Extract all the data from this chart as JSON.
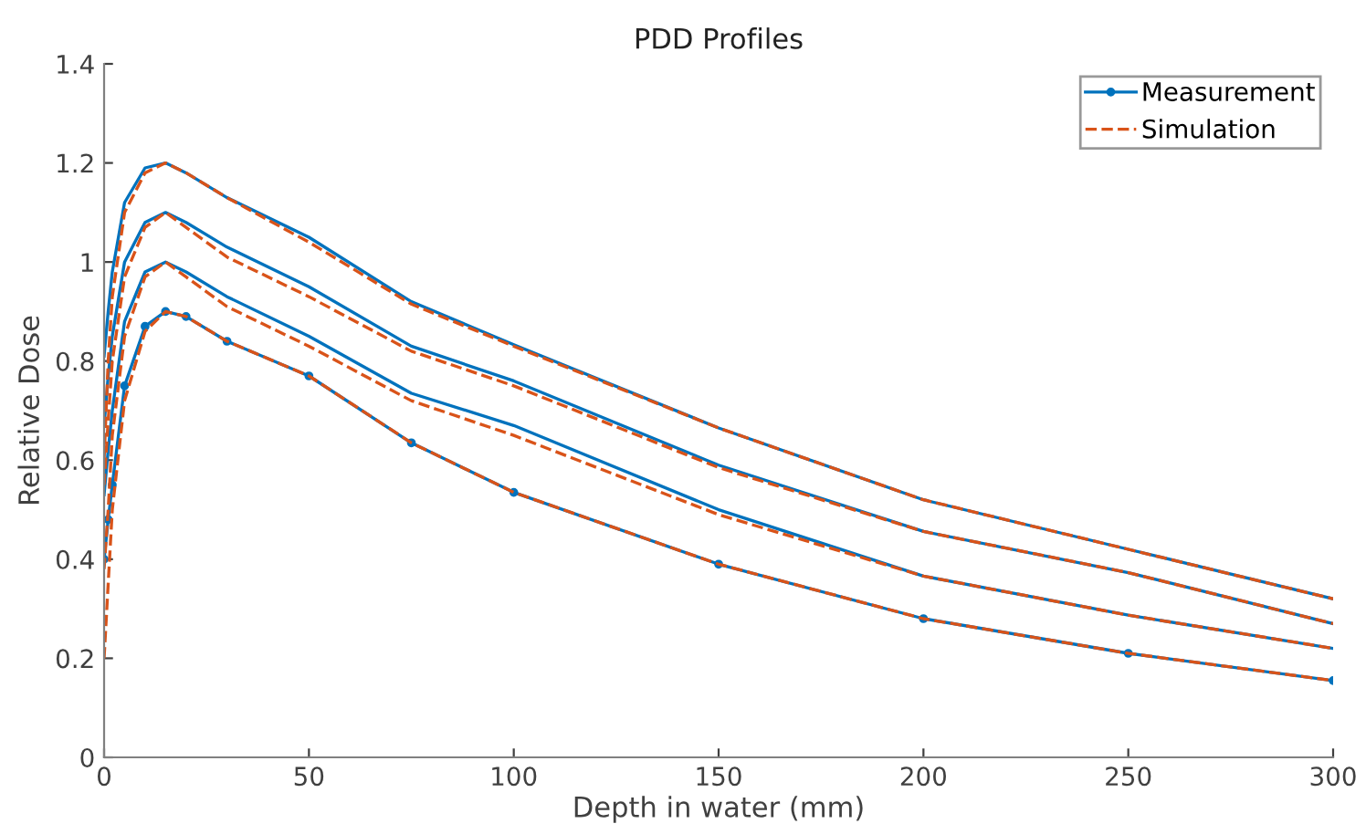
{
  "chart_data": {
    "type": "line",
    "title": "PDD Profiles",
    "xlabel": "Depth in water (mm)",
    "ylabel": "Relative Dose",
    "x": [
      0,
      1,
      2,
      5,
      10,
      15,
      20,
      30,
      50,
      75,
      100,
      150,
      200,
      250,
      300
    ],
    "xlim": [
      0,
      300
    ],
    "xticks": [
      0,
      50,
      100,
      150,
      200,
      250,
      300
    ],
    "ylim": [
      0,
      1.4
    ],
    "yticks": [
      0,
      0.2,
      0.4,
      0.6,
      0.8,
      1,
      1.2,
      1.4
    ],
    "grid": false,
    "legend": "top right",
    "series": [
      {
        "name": "Measurement",
        "color": "#0072bd",
        "line_style": "solid",
        "marker": "circle",
        "values": [
          0.4,
          0.48,
          0.55,
          0.75,
          0.87,
          0.9,
          0.89,
          0.84,
          0.77,
          0.635,
          0.535,
          0.39,
          0.28,
          0.21,
          0.155
        ]
      },
      {
        "name": "Simulation",
        "color": "#d95319",
        "line_style": "dashed",
        "marker": "none",
        "values": [
          0.2,
          0.35,
          0.5,
          0.72,
          0.86,
          0.9,
          0.89,
          0.84,
          0.77,
          0.635,
          0.535,
          0.39,
          0.28,
          0.21,
          0.155
        ]
      },
      {
        "color": "#0072bd",
        "line_style": "solid",
        "marker": "none",
        "values": [
          0.53,
          0.62,
          0.7,
          0.88,
          0.98,
          1.0,
          0.98,
          0.93,
          0.85,
          0.735,
          0.67,
          0.5,
          0.366,
          0.287,
          0.22
        ]
      },
      {
        "color": "#d95319",
        "line_style": "dashed",
        "marker": "none",
        "values": [
          0.38,
          0.5,
          0.65,
          0.85,
          0.97,
          1.0,
          0.97,
          0.91,
          0.83,
          0.72,
          0.65,
          0.49,
          0.366,
          0.287,
          0.22
        ]
      },
      {
        "color": "#0072bd",
        "line_style": "solid",
        "marker": "none",
        "values": [
          0.67,
          0.77,
          0.85,
          1.0,
          1.08,
          1.1,
          1.08,
          1.03,
          0.95,
          0.83,
          0.76,
          0.59,
          0.456,
          0.373,
          0.27
        ]
      },
      {
        "color": "#d95319",
        "line_style": "dashed",
        "marker": "none",
        "values": [
          0.55,
          0.68,
          0.8,
          0.97,
          1.07,
          1.1,
          1.07,
          1.01,
          0.93,
          0.82,
          0.75,
          0.585,
          0.456,
          0.373,
          0.27
        ]
      },
      {
        "color": "#0072bd",
        "line_style": "solid",
        "marker": "none",
        "values": [
          0.81,
          0.9,
          0.98,
          1.12,
          1.19,
          1.2,
          1.18,
          1.13,
          1.05,
          0.92,
          0.833,
          0.665,
          0.52,
          0.42,
          0.32
        ]
      },
      {
        "color": "#d95319",
        "line_style": "dashed",
        "marker": "none",
        "values": [
          0.6,
          0.8,
          0.93,
          1.1,
          1.18,
          1.2,
          1.18,
          1.13,
          1.04,
          0.915,
          0.83,
          0.665,
          0.52,
          0.42,
          0.32
        ]
      }
    ]
  }
}
